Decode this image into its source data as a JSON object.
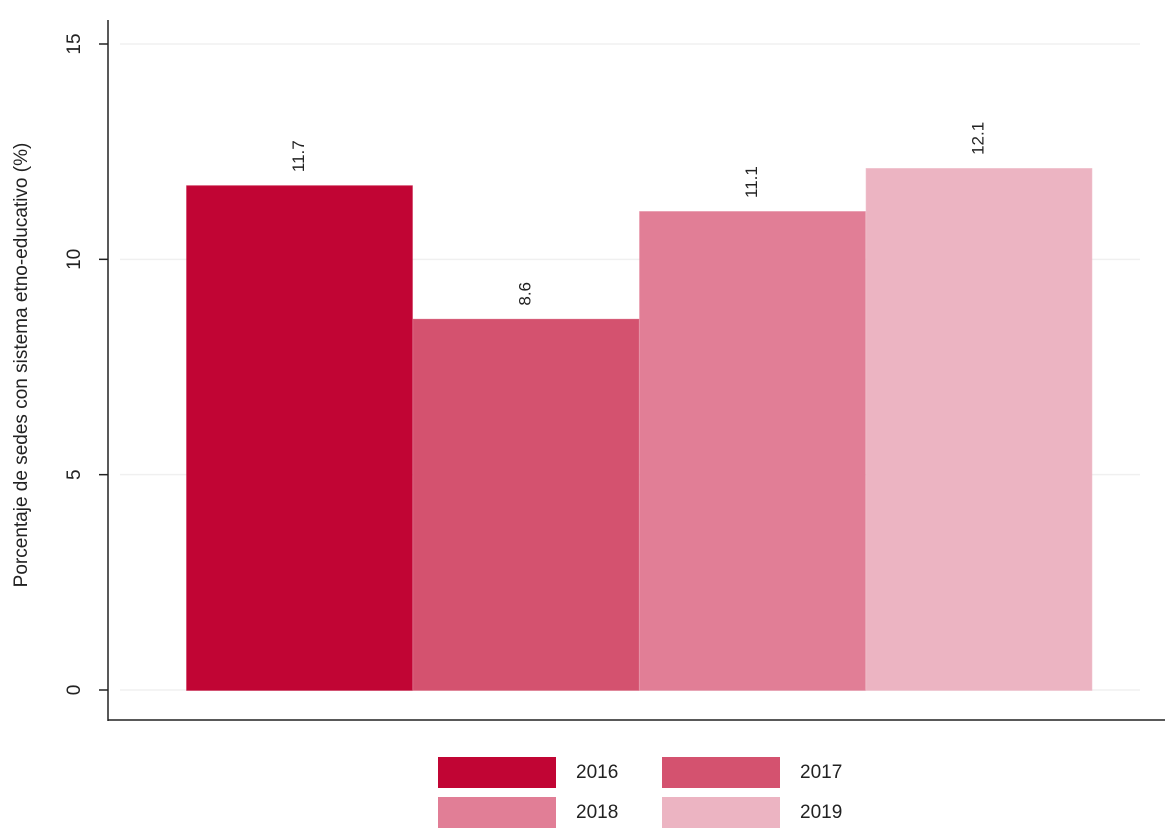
{
  "chart_data": {
    "type": "bar",
    "y_label": "Porcentaje de sedes con sistema etno-educativo (%)",
    "series": [
      {
        "name": "2016",
        "color": "#c10534",
        "values": [
          11.7
        ]
      },
      {
        "name": "2017",
        "color": "#d4526f",
        "values": [
          8.6
        ]
      },
      {
        "name": "2018",
        "color": "#e17e96",
        "values": [
          11.1
        ]
      },
      {
        "name": "2019",
        "color": "#ecb4c2",
        "values": [
          12.1
        ]
      }
    ],
    "ylim": [
      0,
      15
    ],
    "yticks": [
      0,
      5,
      10,
      15
    ],
    "grid": true,
    "legend": "bottom"
  }
}
